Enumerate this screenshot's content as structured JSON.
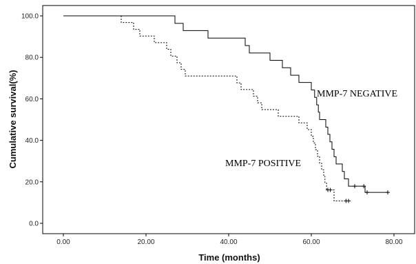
{
  "chart_data": {
    "type": "line",
    "title": "",
    "xlabel": "Time (months)",
    "ylabel": "Cumulative survival(%)",
    "xlim": [
      -5,
      85
    ],
    "ylim": [
      -5,
      105
    ],
    "xticks": [
      "0.00",
      "20.00",
      "40.00",
      "60.00",
      "80.00"
    ],
    "xtick_values": [
      0,
      20,
      40,
      60,
      80
    ],
    "yticks": [
      "0.0",
      "20.0",
      "40.0",
      "60.0",
      "80.0",
      "100.0"
    ],
    "ytick_values": [
      0,
      20,
      40,
      60,
      80,
      100
    ],
    "grid": false,
    "legend": "none",
    "series": [
      {
        "name": "MMP-7 NEGATIVE",
        "style": "solid",
        "color": "#000000",
        "step_points": [
          [
            0,
            100
          ],
          [
            27,
            100
          ],
          [
            27,
            96.4
          ],
          [
            29,
            96.4
          ],
          [
            29,
            92.9
          ],
          [
            35,
            92.9
          ],
          [
            35,
            89.3
          ],
          [
            44,
            89.3
          ],
          [
            44,
            85.7
          ],
          [
            45,
            85.7
          ],
          [
            45,
            82.1
          ],
          [
            50,
            82.1
          ],
          [
            50,
            78.6
          ],
          [
            53,
            78.6
          ],
          [
            53,
            75.0
          ],
          [
            55,
            75.0
          ],
          [
            55,
            71.4
          ],
          [
            57,
            71.4
          ],
          [
            57,
            67.9
          ],
          [
            60,
            67.9
          ],
          [
            60,
            64.3
          ],
          [
            60.8,
            64.3
          ],
          [
            60.8,
            60.7
          ],
          [
            61.3,
            60.7
          ],
          [
            61.3,
            57.1
          ],
          [
            61.7,
            57.1
          ],
          [
            61.7,
            53.6
          ],
          [
            62,
            53.6
          ],
          [
            62,
            50.0
          ],
          [
            63.5,
            50.0
          ],
          [
            63.5,
            46.4
          ],
          [
            64,
            46.4
          ],
          [
            64,
            42.9
          ],
          [
            64.5,
            42.9
          ],
          [
            64.5,
            39.3
          ],
          [
            65,
            39.3
          ],
          [
            65,
            35.7
          ],
          [
            65.5,
            35.7
          ],
          [
            65.5,
            32.1
          ],
          [
            66,
            32.1
          ],
          [
            66,
            28.6
          ],
          [
            67.5,
            28.6
          ],
          [
            67.5,
            25.0
          ],
          [
            68,
            25.0
          ],
          [
            68,
            21.4
          ],
          [
            69,
            21.4
          ],
          [
            69,
            17.9
          ],
          [
            73,
            17.9
          ],
          [
            73,
            14.9
          ],
          [
            78.5,
            14.9
          ]
        ],
        "censored": [
          [
            70.5,
            17.9
          ],
          [
            72.7,
            17.9
          ],
          [
            73.5,
            14.9
          ],
          [
            78.5,
            14.9
          ]
        ]
      },
      {
        "name": "MMP-7 POSITIVE",
        "style": "dashed",
        "color": "#000000",
        "step_points": [
          [
            0,
            100
          ],
          [
            14,
            100
          ],
          [
            14,
            96.8
          ],
          [
            17,
            96.8
          ],
          [
            17,
            93.5
          ],
          [
            18.5,
            93.5
          ],
          [
            18.5,
            90.3
          ],
          [
            22,
            90.3
          ],
          [
            22,
            87.1
          ],
          [
            25,
            87.1
          ],
          [
            25,
            83.9
          ],
          [
            26,
            83.9
          ],
          [
            26,
            80.6
          ],
          [
            27.5,
            80.6
          ],
          [
            27.5,
            77.4
          ],
          [
            28.5,
            77.4
          ],
          [
            28.5,
            74.2
          ],
          [
            29.5,
            74.2
          ],
          [
            29.5,
            71.0
          ],
          [
            42,
            71.0
          ],
          [
            42,
            67.7
          ],
          [
            43,
            67.7
          ],
          [
            43,
            64.5
          ],
          [
            46,
            64.5
          ],
          [
            46,
            61.3
          ],
          [
            47,
            61.3
          ],
          [
            47,
            58.1
          ],
          [
            48,
            58.1
          ],
          [
            48,
            54.8
          ],
          [
            52,
            54.8
          ],
          [
            52,
            51.6
          ],
          [
            57,
            51.6
          ],
          [
            57,
            48.4
          ],
          [
            59,
            48.4
          ],
          [
            59,
            45.2
          ],
          [
            60,
            45.2
          ],
          [
            60,
            41.9
          ],
          [
            60.5,
            41.9
          ],
          [
            60.5,
            38.7
          ],
          [
            61,
            38.7
          ],
          [
            61,
            35.5
          ],
          [
            61.5,
            35.5
          ],
          [
            61.5,
            32.3
          ],
          [
            62,
            32.3
          ],
          [
            62,
            29.0
          ],
          [
            62.5,
            29.0
          ],
          [
            62.5,
            25.8
          ],
          [
            63,
            25.8
          ],
          [
            63,
            22.6
          ],
          [
            63.3,
            22.6
          ],
          [
            63.3,
            19.4
          ],
          [
            63.7,
            19.4
          ],
          [
            63.7,
            16.1
          ],
          [
            65.5,
            16.1
          ],
          [
            65.5,
            10.8
          ],
          [
            69,
            10.8
          ]
        ],
        "censored": [
          [
            64.0,
            16.1
          ],
          [
            64.6,
            16.1
          ],
          [
            68.4,
            10.8
          ],
          [
            69.0,
            10.8
          ]
        ]
      }
    ],
    "annotations": {
      "negative": "MMP-7 NEGATIVE",
      "positive": "MMP-7 POSITIVE"
    }
  }
}
